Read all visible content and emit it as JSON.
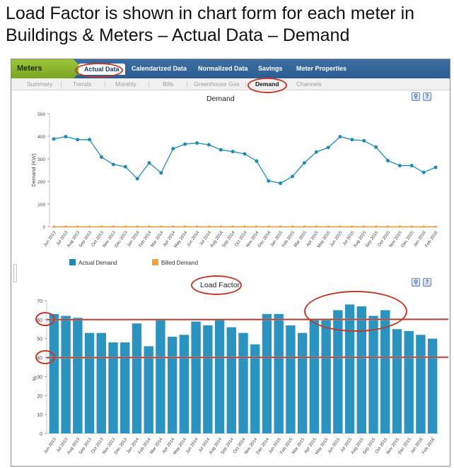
{
  "slide": {
    "title": "Load Factor is shown in chart form for each meter in Buildings & Meters – Actual Data – Demand"
  },
  "topnav": {
    "brand": "Meters",
    "items": [
      "Actual Data",
      "Calendarized Data",
      "Normalized Data",
      "Savings",
      "Meter Properties"
    ],
    "active": "Actual Data"
  },
  "subnav": {
    "items": [
      "Summary",
      "Trends",
      "Monthly",
      "Bills",
      "Greenhouse Gas",
      "Demand",
      "Channels"
    ],
    "active": "Demand"
  },
  "toolbar": {
    "zoom_icon": "magnifier-icon",
    "help_label": "?"
  },
  "colors": {
    "brand_green": "#8bb52c",
    "nav_blue": "#2f6196",
    "actual_demand": "#1f8bb3",
    "billed_demand": "#f0a43a",
    "bars": "#2a93bf",
    "annotation": "#c0392b"
  },
  "months": [
    "Jun 2013",
    "Jul 2013",
    "Aug 2013",
    "Sep 2013",
    "Oct 2013",
    "Nov 2013",
    "Dec 2013",
    "Jan 2014",
    "Feb 2014",
    "Mar 2014",
    "Apr 2014",
    "May 2014",
    "Jun 2014",
    "Jul 2014",
    "Aug 2014",
    "Sep 2014",
    "Oct 2014",
    "Nov 2014",
    "Dec 2014",
    "Jan 2015",
    "Feb 2015",
    "Mar 2015",
    "Apr 2015",
    "May 2015",
    "Jun 2015",
    "Jul 2015",
    "Aug 2015",
    "Sep 2015",
    "Oct 2015",
    "Nov 2015",
    "Dec 2015",
    "Jan 2016",
    "Feb 2016"
  ],
  "chart_data": [
    {
      "type": "line",
      "title": "Demand",
      "xlabel": "",
      "ylabel": "Demand (KW)",
      "ylim": [
        0,
        500
      ],
      "yticks": [
        0,
        100,
        200,
        300,
        400,
        500
      ],
      "grid": false,
      "legend": "bottom",
      "series": [
        {
          "name": "Actual Demand",
          "values": [
            388,
            398,
            385,
            385,
            308,
            275,
            265,
            212,
            282,
            238,
            345,
            365,
            370,
            362,
            340,
            332,
            322,
            290,
            202,
            192,
            222,
            282,
            330,
            350,
            398,
            385,
            380,
            352,
            292,
            270,
            270,
            240,
            262
          ]
        },
        {
          "name": "Billed Demand",
          "values": [
            0,
            0,
            0,
            0,
            0,
            0,
            0,
            0,
            0,
            0,
            0,
            0,
            0,
            0,
            0,
            0,
            0,
            0,
            0,
            0,
            0,
            0,
            0,
            0,
            0,
            0,
            0,
            0,
            0,
            0,
            0,
            0,
            0
          ]
        }
      ]
    },
    {
      "type": "bar",
      "title": "Load Factor",
      "xlabel": "",
      "ylabel": "%",
      "ylim": [
        0,
        70
      ],
      "yticks": [
        0,
        10,
        20,
        30,
        40,
        50,
        60,
        70
      ],
      "grid": false,
      "reference_lines": [
        60,
        40
      ],
      "values": [
        63,
        62,
        61,
        53,
        53,
        48,
        48,
        58,
        46,
        60,
        51,
        52,
        59,
        57,
        60,
        56,
        53,
        47,
        63,
        63,
        57,
        53,
        60,
        60,
        65,
        68,
        67,
        62,
        65,
        55,
        54,
        52,
        50
      ]
    }
  ],
  "legend": {
    "actual": "Actual Demand",
    "billed": "Billed Demand"
  }
}
